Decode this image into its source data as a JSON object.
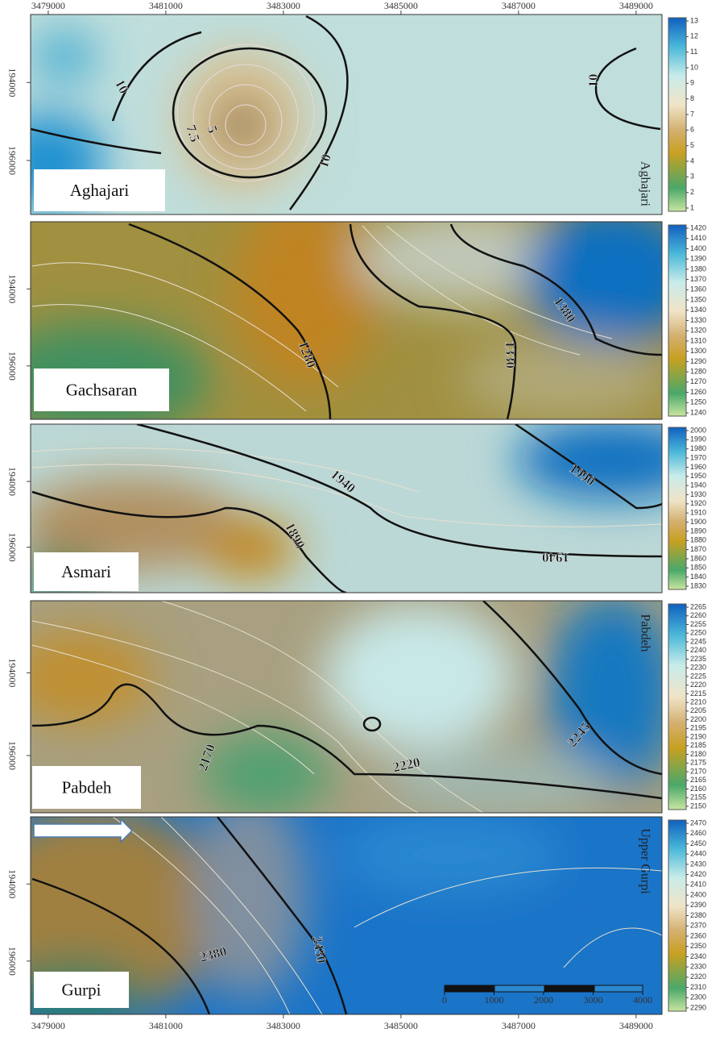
{
  "x_axis": {
    "ticks": [
      3479000,
      3481000,
      3483000,
      3485000,
      3487000,
      3489000
    ],
    "xlim": [
      3478700,
      3489440
    ]
  },
  "panels": [
    {
      "name": "Aghajari",
      "side_label": "Aghajari",
      "y_ticks": [
        194000,
        196000
      ],
      "colorbar": [
        13,
        12,
        11,
        10,
        9,
        8,
        7,
        6,
        5,
        4,
        3,
        2,
        1
      ],
      "contour_labels": [
        10,
        7.5,
        5,
        10,
        10
      ]
    },
    {
      "name": "Gachsaran",
      "y_ticks": [
        194000,
        196000
      ],
      "colorbar": [
        1420,
        1410,
        1400,
        1390,
        1380,
        1370,
        1360,
        1350,
        1340,
        1330,
        1320,
        1310,
        1300,
        1290,
        1280,
        1270,
        1260,
        1250,
        1240
      ],
      "contour_labels": [
        1280,
        1330,
        1380
      ]
    },
    {
      "name": "Asmari",
      "y_ticks": [
        194000,
        196000
      ],
      "colorbar": [
        2000,
        1990,
        1980,
        1970,
        1960,
        1950,
        1940,
        1930,
        1920,
        1910,
        1900,
        1890,
        1880,
        1870,
        1860,
        1850,
        1840,
        1830
      ],
      "contour_labels": [
        1940,
        1890,
        1990,
        1940
      ]
    },
    {
      "name": "Pabdeh",
      "side_label": "Pabdeh",
      "y_ticks": [
        194000,
        196000
      ],
      "colorbar": [
        2265,
        2260,
        2255,
        2250,
        2245,
        2240,
        2235,
        2230,
        2225,
        2220,
        2215,
        2210,
        2205,
        2200,
        2195,
        2190,
        2185,
        2180,
        2175,
        2170,
        2165,
        2160,
        2155,
        2150
      ],
      "contour_labels": [
        2170,
        2220,
        2245
      ]
    },
    {
      "name": "Gurpi",
      "side_label": "Upper Gurpi",
      "y_ticks": [
        194000,
        196000
      ],
      "colorbar": [
        2470,
        2460,
        2450,
        2440,
        2430,
        2420,
        2410,
        2400,
        2390,
        2380,
        2370,
        2360,
        2350,
        2340,
        2330,
        2320,
        2310,
        2300,
        2290
      ],
      "contour_labels": [
        2380,
        2430
      ]
    }
  ],
  "scale_bar": [
    0,
    1000,
    2000,
    3000,
    4000
  ]
}
